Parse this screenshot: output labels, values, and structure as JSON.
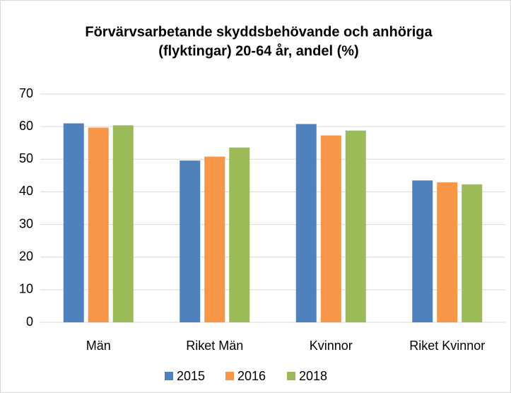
{
  "chart_data": {
    "type": "bar",
    "title": [
      "Förvärvsarbetande skyddsbehövande och anhöriga",
      "(flyktingar) 20-64 år, andel (%)"
    ],
    "categories": [
      "Män",
      "Riket Män",
      "Kvinnor",
      "Riket Kvinnor"
    ],
    "series": [
      {
        "name": "2015",
        "color": "#4f81bd",
        "values": [
          61.0,
          49.6,
          60.8,
          43.5
        ]
      },
      {
        "name": "2016",
        "color": "#f79646",
        "values": [
          59.7,
          50.8,
          57.3,
          42.9
        ]
      },
      {
        "name": "2018",
        "color": "#9bbb59",
        "values": [
          60.4,
          53.6,
          58.8,
          42.3
        ]
      }
    ],
    "ylim": [
      0,
      70
    ],
    "yticks": [
      0,
      10,
      20,
      30,
      40,
      50,
      60,
      70
    ],
    "grid": true,
    "legend": "bottom"
  }
}
